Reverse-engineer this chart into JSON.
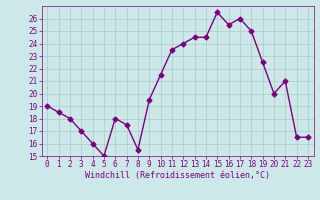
{
  "x": [
    0,
    1,
    2,
    3,
    4,
    5,
    6,
    7,
    8,
    9,
    10,
    11,
    12,
    13,
    14,
    15,
    16,
    17,
    18,
    19,
    20,
    21,
    22,
    23
  ],
  "y": [
    19,
    18.5,
    18,
    17,
    16,
    15,
    18,
    17.5,
    15.5,
    19.5,
    21.5,
    23.5,
    24,
    24.5,
    24.5,
    26.5,
    25.5,
    26,
    25,
    22.5,
    20,
    21,
    16.5,
    16.5
  ],
  "line_color": "#800080",
  "marker": "D",
  "marker_size": 2.5,
  "bg_color": "#cce8e8",
  "grid_color": "#aacccc",
  "xlabel": "Windchill (Refroidissement éolien,°C)",
  "xlim": [
    -0.5,
    23.5
  ],
  "ylim": [
    15,
    27
  ],
  "yticks": [
    15,
    16,
    17,
    18,
    19,
    20,
    21,
    22,
    23,
    24,
    25,
    26
  ],
  "xticks": [
    0,
    1,
    2,
    3,
    4,
    5,
    6,
    7,
    8,
    9,
    10,
    11,
    12,
    13,
    14,
    15,
    16,
    17,
    18,
    19,
    20,
    21,
    22,
    23
  ],
  "tick_color": "#800080",
  "font_family": "monospace",
  "xlabel_fontsize": 6.0,
  "tick_fontsize": 5.5,
  "linewidth": 1.0
}
